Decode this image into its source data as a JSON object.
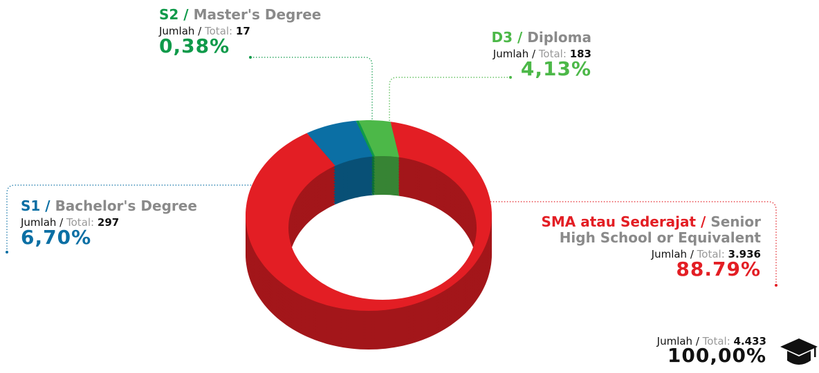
{
  "chart_data": {
    "type": "donut",
    "codes": [
      "S2 /",
      "D3 /",
      "SMA atau Sederajat /",
      "S1 /"
    ],
    "names": [
      "Master's Degree",
      "Diploma",
      "Senior High School or Equivalent",
      "Bachelor's Degree"
    ],
    "colors": [
      "#0f9a4a",
      "#4cb848",
      "#e31e24",
      "#0b6fa4"
    ],
    "values": [
      0.38,
      4.13,
      88.79,
      6.7
    ],
    "value_labels": [
      "0,38%",
      "4,13%",
      "88.79%",
      "6,70%"
    ],
    "counts": [
      17,
      183,
      3936,
      297
    ],
    "count_labels": [
      "17",
      "183",
      "3.936",
      "297"
    ],
    "count_caption": {
      "local": "Jumlah /",
      "english": "Total:"
    },
    "total": {
      "count": 4433,
      "count_label": "4.433",
      "percent": 100,
      "percent_label": "100,00%"
    }
  }
}
